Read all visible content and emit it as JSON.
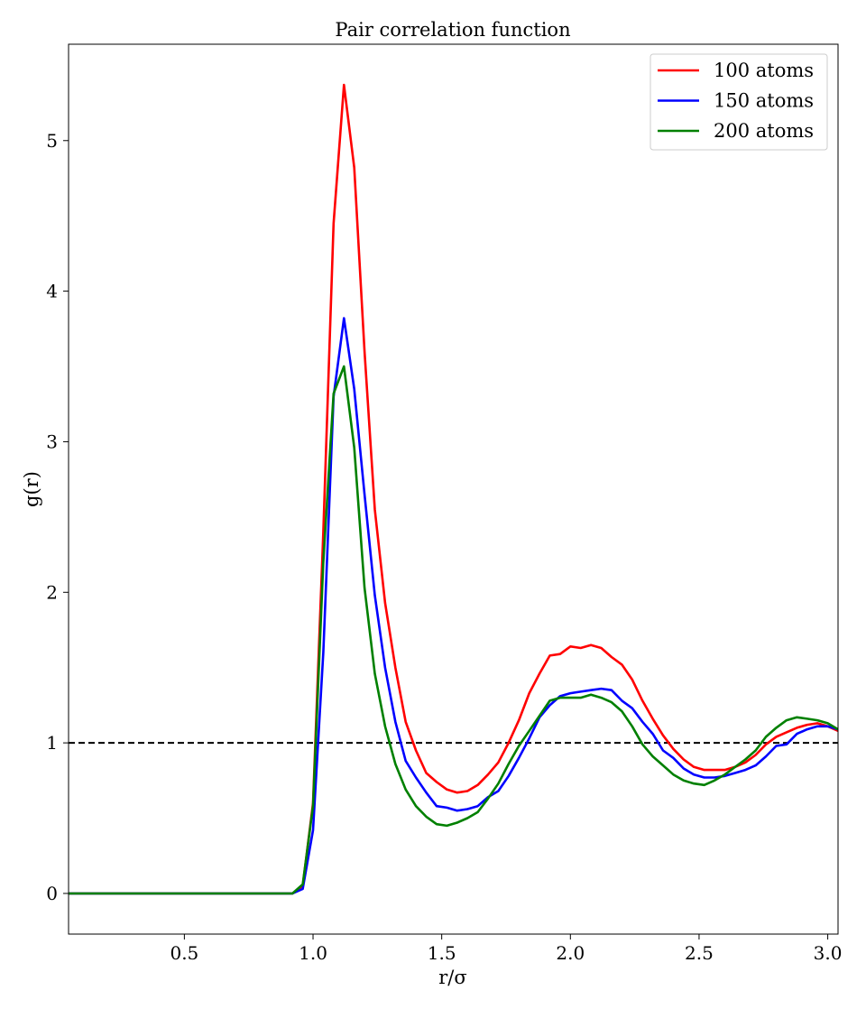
{
  "chart_data": {
    "type": "line",
    "title": "Pair correlation function",
    "xlabel": "r/σ",
    "ylabel": "g(r)",
    "xlim": [
      0.05,
      3.04
    ],
    "ylim": [
      -0.27,
      5.64
    ],
    "xticks": [
      0.5,
      1.0,
      1.5,
      2.0,
      2.5,
      3.0
    ],
    "xtick_labels": [
      "0.5",
      "1.0",
      "1.5",
      "2.0",
      "2.5",
      "3.0"
    ],
    "yticks": [
      0,
      1,
      2,
      3,
      4,
      5
    ],
    "ytick_labels": [
      "0",
      "1",
      "2",
      "3",
      "4",
      "5"
    ],
    "grid": false,
    "legend_position": "top-right",
    "reference_line": {
      "y": 1.0,
      "style": "dashed",
      "color": "#000000"
    },
    "series": [
      {
        "name": "100 atoms",
        "color": "#ff0000",
        "x": [
          0.05,
          0.92,
          0.96,
          1.0,
          1.04,
          1.08,
          1.12,
          1.16,
          1.2,
          1.24,
          1.28,
          1.32,
          1.36,
          1.4,
          1.44,
          1.48,
          1.52,
          1.56,
          1.6,
          1.64,
          1.68,
          1.72,
          1.76,
          1.8,
          1.84,
          1.88,
          1.92,
          1.96,
          2.0,
          2.04,
          2.08,
          2.12,
          2.16,
          2.2,
          2.24,
          2.28,
          2.32,
          2.36,
          2.4,
          2.44,
          2.48,
          2.52,
          2.56,
          2.6,
          2.64,
          2.68,
          2.72,
          2.76,
          2.8,
          2.84,
          2.88,
          2.92,
          2.96,
          3.0,
          3.04
        ],
        "y": [
          0.0,
          0.0,
          0.05,
          0.6,
          2.4,
          4.45,
          5.37,
          4.82,
          3.6,
          2.55,
          1.93,
          1.5,
          1.14,
          0.95,
          0.8,
          0.74,
          0.69,
          0.67,
          0.68,
          0.72,
          0.79,
          0.87,
          1.0,
          1.15,
          1.33,
          1.46,
          1.58,
          1.59,
          1.64,
          1.63,
          1.65,
          1.63,
          1.57,
          1.52,
          1.42,
          1.28,
          1.16,
          1.05,
          0.96,
          0.89,
          0.84,
          0.82,
          0.82,
          0.82,
          0.84,
          0.87,
          0.92,
          0.99,
          1.04,
          1.07,
          1.1,
          1.12,
          1.13,
          1.11,
          1.08
        ]
      },
      {
        "name": "150 atoms",
        "color": "#0000ff",
        "x": [
          0.05,
          0.92,
          0.96,
          1.0,
          1.04,
          1.08,
          1.12,
          1.16,
          1.2,
          1.24,
          1.28,
          1.32,
          1.36,
          1.4,
          1.44,
          1.48,
          1.52,
          1.56,
          1.6,
          1.64,
          1.68,
          1.72,
          1.76,
          1.8,
          1.84,
          1.88,
          1.92,
          1.96,
          2.0,
          2.04,
          2.08,
          2.12,
          2.16,
          2.2,
          2.24,
          2.28,
          2.32,
          2.36,
          2.4,
          2.44,
          2.48,
          2.52,
          2.56,
          2.6,
          2.64,
          2.68,
          2.72,
          2.76,
          2.8,
          2.84,
          2.88,
          2.92,
          2.96,
          3.0,
          3.04
        ],
        "y": [
          0.0,
          0.0,
          0.03,
          0.42,
          1.6,
          3.3,
          3.82,
          3.35,
          2.65,
          1.98,
          1.5,
          1.14,
          0.88,
          0.77,
          0.67,
          0.58,
          0.57,
          0.55,
          0.56,
          0.58,
          0.64,
          0.68,
          0.78,
          0.9,
          1.03,
          1.17,
          1.25,
          1.31,
          1.33,
          1.34,
          1.35,
          1.36,
          1.35,
          1.28,
          1.23,
          1.14,
          1.06,
          0.95,
          0.9,
          0.83,
          0.79,
          0.77,
          0.77,
          0.78,
          0.8,
          0.82,
          0.85,
          0.91,
          0.98,
          0.99,
          1.06,
          1.09,
          1.11,
          1.11,
          1.09
        ]
      },
      {
        "name": "200 atoms",
        "color": "#008000",
        "x": [
          0.05,
          0.92,
          0.96,
          1.0,
          1.04,
          1.08,
          1.12,
          1.16,
          1.2,
          1.24,
          1.28,
          1.32,
          1.36,
          1.4,
          1.44,
          1.48,
          1.52,
          1.56,
          1.6,
          1.64,
          1.68,
          1.72,
          1.76,
          1.8,
          1.84,
          1.88,
          1.92,
          1.96,
          2.0,
          2.04,
          2.08,
          2.12,
          2.16,
          2.2,
          2.24,
          2.28,
          2.32,
          2.36,
          2.4,
          2.44,
          2.48,
          2.52,
          2.56,
          2.6,
          2.64,
          2.68,
          2.72,
          2.76,
          2.8,
          2.84,
          2.88,
          2.92,
          2.96,
          3.0,
          3.04
        ],
        "y": [
          0.0,
          0.0,
          0.06,
          0.58,
          2.2,
          3.32,
          3.5,
          2.96,
          2.03,
          1.46,
          1.11,
          0.86,
          0.69,
          0.58,
          0.51,
          0.46,
          0.45,
          0.47,
          0.5,
          0.54,
          0.63,
          0.73,
          0.86,
          0.98,
          1.08,
          1.18,
          1.28,
          1.3,
          1.3,
          1.3,
          1.32,
          1.3,
          1.27,
          1.21,
          1.11,
          0.99,
          0.91,
          0.85,
          0.79,
          0.75,
          0.73,
          0.72,
          0.75,
          0.79,
          0.84,
          0.89,
          0.95,
          1.04,
          1.1,
          1.15,
          1.17,
          1.16,
          1.15,
          1.13,
          1.09
        ]
      }
    ]
  }
}
